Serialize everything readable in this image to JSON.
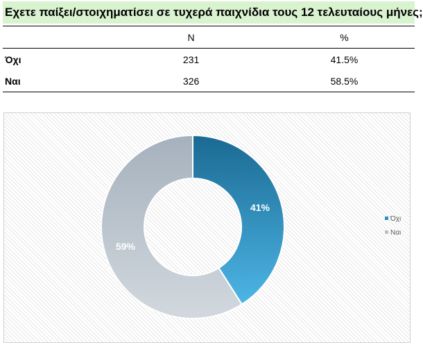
{
  "title": "Εχετε παίξει/στοιχηματίσει σε τυχερά παιχνίδια τους 12 τελευταίους μήνες;",
  "table": {
    "headers": [
      "",
      "N",
      "%"
    ],
    "rows": [
      {
        "label": "Όχι",
        "n": "231",
        "pct": "41.5%"
      },
      {
        "label": "Ναι",
        "n": "326",
        "pct": "58.5%"
      }
    ]
  },
  "chart_data": {
    "type": "pie",
    "donut": true,
    "categories": [
      "Όχι",
      "Ναι"
    ],
    "values": [
      41,
      59
    ],
    "data_labels": [
      "41%",
      "59%"
    ],
    "colors": [
      "#2f8fc0",
      "#b8c2cc"
    ],
    "legend_position": "right"
  }
}
